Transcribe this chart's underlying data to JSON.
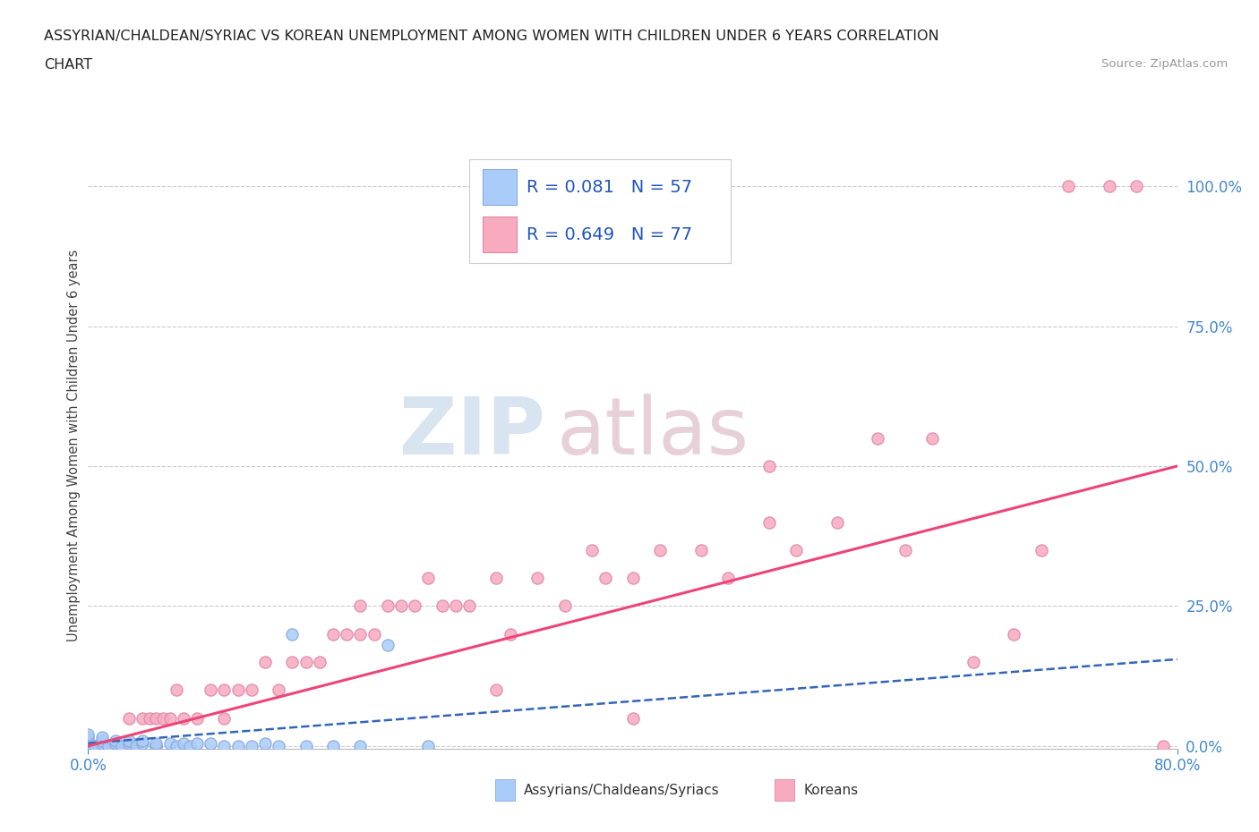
{
  "title_line1": "ASSYRIAN/CHALDEAN/SYRIAC VS KOREAN UNEMPLOYMENT AMONG WOMEN WITH CHILDREN UNDER 6 YEARS CORRELATION",
  "title_line2": "CHART",
  "source": "Source: ZipAtlas.com",
  "ylabel": "Unemployment Among Women with Children Under 6 years",
  "xlim": [
    0.0,
    0.8
  ],
  "ylim": [
    -0.005,
    1.08
  ],
  "y_ticks": [
    0.0,
    0.25,
    0.5,
    0.75,
    1.0
  ],
  "grid_color": "#cccccc",
  "background_color": "#ffffff",
  "blue_color": "#aaccf8",
  "pink_color": "#f8aabf",
  "blue_edge_color": "#88aadd",
  "pink_edge_color": "#dd88aa",
  "blue_line_color": "#3366bb",
  "pink_line_color": "#ee4477",
  "blue_line_style": "--",
  "pink_line_style": "-",
  "legend_R_blue": "0.081",
  "legend_N_blue": "57",
  "legend_R_pink": "0.649",
  "legend_N_pink": "77",
  "legend_label_blue": "Assyrians/Chaldeans/Syriacs",
  "legend_label_pink": "Koreans",
  "watermark_line1": "ZIP",
  "watermark_line2": "atlas",
  "blue_scatter_x": [
    0.0,
    0.0,
    0.0,
    0.0,
    0.0,
    0.0,
    0.0,
    0.0,
    0.0,
    0.0,
    0.0,
    0.0,
    0.0,
    0.0,
    0.0,
    0.0,
    0.0,
    0.0,
    0.0,
    0.0,
    0.0,
    0.0,
    0.0,
    0.0,
    0.0,
    0.005,
    0.01,
    0.01,
    0.01,
    0.015,
    0.02,
    0.02,
    0.025,
    0.03,
    0.03,
    0.035,
    0.04,
    0.04,
    0.05,
    0.05,
    0.06,
    0.065,
    0.07,
    0.075,
    0.08,
    0.09,
    0.1,
    0.11,
    0.12,
    0.13,
    0.14,
    0.15,
    0.16,
    0.18,
    0.2,
    0.22,
    0.25
  ],
  "blue_scatter_y": [
    0.0,
    0.0,
    0.0,
    0.0,
    0.0,
    0.0,
    0.0,
    0.0,
    0.0,
    0.0,
    0.0,
    0.0,
    0.0,
    0.0,
    0.0,
    0.0,
    0.0,
    0.005,
    0.005,
    0.005,
    0.005,
    0.01,
    0.01,
    0.015,
    0.02,
    0.0,
    0.005,
    0.01,
    0.015,
    0.0,
    0.005,
    0.01,
    0.0,
    0.005,
    0.01,
    0.0,
    0.005,
    0.01,
    0.0,
    0.005,
    0.005,
    0.0,
    0.005,
    0.0,
    0.005,
    0.005,
    0.0,
    0.0,
    0.0,
    0.005,
    0.0,
    0.2,
    0.0,
    0.0,
    0.0,
    0.18,
    0.0
  ],
  "pink_scatter_x": [
    0.0,
    0.0,
    0.0,
    0.0,
    0.0,
    0.0,
    0.0,
    0.0,
    0.0,
    0.0,
    0.005,
    0.01,
    0.01,
    0.015,
    0.02,
    0.02,
    0.025,
    0.03,
    0.03,
    0.035,
    0.04,
    0.045,
    0.05,
    0.05,
    0.055,
    0.06,
    0.065,
    0.07,
    0.08,
    0.09,
    0.1,
    0.1,
    0.11,
    0.12,
    0.13,
    0.14,
    0.15,
    0.16,
    0.17,
    0.18,
    0.19,
    0.2,
    0.2,
    0.21,
    0.22,
    0.23,
    0.24,
    0.25,
    0.26,
    0.27,
    0.28,
    0.3,
    0.3,
    0.31,
    0.33,
    0.35,
    0.37,
    0.38,
    0.4,
    0.4,
    0.42,
    0.45,
    0.47,
    0.5,
    0.5,
    0.52,
    0.55,
    0.58,
    0.6,
    0.62,
    0.65,
    0.68,
    0.7,
    0.72,
    0.75,
    0.77,
    0.79
  ],
  "pink_scatter_y": [
    0.0,
    0.0,
    0.0,
    0.0,
    0.0,
    0.0,
    0.0,
    0.0,
    0.0,
    0.0,
    0.0,
    0.0,
    0.0,
    0.0,
    0.0,
    0.0,
    0.0,
    0.0,
    0.05,
    0.0,
    0.05,
    0.05,
    0.0,
    0.05,
    0.05,
    0.05,
    0.1,
    0.05,
    0.05,
    0.1,
    0.1,
    0.05,
    0.1,
    0.1,
    0.15,
    0.1,
    0.15,
    0.15,
    0.15,
    0.2,
    0.2,
    0.2,
    0.25,
    0.2,
    0.25,
    0.25,
    0.25,
    0.3,
    0.25,
    0.25,
    0.25,
    0.3,
    0.1,
    0.2,
    0.3,
    0.25,
    0.35,
    0.3,
    0.3,
    0.05,
    0.35,
    0.35,
    0.3,
    0.4,
    0.5,
    0.35,
    0.4,
    0.55,
    0.35,
    0.55,
    0.15,
    0.2,
    0.35,
    1.0,
    1.0,
    1.0,
    0.0
  ],
  "pink_trendline_x0": 0.0,
  "pink_trendline_y0": 0.0,
  "pink_trendline_x1": 0.8,
  "pink_trendline_y1": 0.5,
  "blue_trendline_x0": 0.0,
  "blue_trendline_y0": 0.005,
  "blue_trendline_x1": 0.8,
  "blue_trendline_y1": 0.155
}
